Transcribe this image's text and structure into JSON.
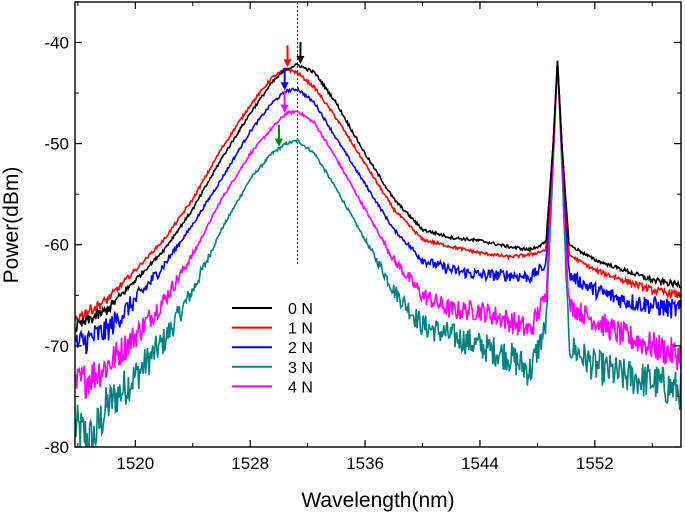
{
  "chart_data": {
    "type": "line",
    "title": "",
    "xlabel": "Wavelength(nm)",
    "ylabel": "Power(dBm)",
    "xlim": [
      1515.8,
      1558.0
    ],
    "ylim": [
      -80,
      -36
    ],
    "xticks": [
      1520,
      1528,
      1536,
      1544,
      1552
    ],
    "yticks": [
      -80,
      -70,
      -60,
      -50,
      -40
    ],
    "xtick_labels": [
      "1520",
      "1528",
      "1536",
      "1544",
      "1552"
    ],
    "ytick_labels": [
      "-80",
      "-70",
      "-60",
      "-50",
      "-40"
    ],
    "legend_position": "bottom-center",
    "reference_line_x": 1531.3,
    "series": [
      {
        "name": "0 N",
        "color": "#000000",
        "points": [
          [
            1515.8,
            -68.2
          ],
          [
            1518,
            -66.5
          ],
          [
            1520,
            -63.5
          ],
          [
            1522,
            -60.5
          ],
          [
            1524,
            -56.5
          ],
          [
            1526,
            -51.5
          ],
          [
            1528,
            -47.0
          ],
          [
            1529.5,
            -44.0
          ],
          [
            1530.5,
            -42.6
          ],
          [
            1531.3,
            -42.2
          ],
          [
            1532.5,
            -43.0
          ],
          [
            1534,
            -46.0
          ],
          [
            1536,
            -51.0
          ],
          [
            1538,
            -55.5
          ],
          [
            1540,
            -58.5
          ],
          [
            1542,
            -59.3
          ],
          [
            1544,
            -59.6
          ],
          [
            1546,
            -60.2
          ],
          [
            1547.5,
            -60.5
          ],
          [
            1548.6,
            -59.8
          ],
          [
            1549.1,
            -50.0
          ],
          [
            1549.4,
            -41.8
          ],
          [
            1549.7,
            -50.0
          ],
          [
            1550.2,
            -60.0
          ],
          [
            1552,
            -61.5
          ],
          [
            1554,
            -62.5
          ],
          [
            1556,
            -63.5
          ],
          [
            1558,
            -64.0
          ]
        ]
      },
      {
        "name": "1 N",
        "color": "#ff0000",
        "points": [
          [
            1515.8,
            -67.3
          ],
          [
            1518,
            -65.5
          ],
          [
            1520,
            -62.5
          ],
          [
            1522,
            -59.5
          ],
          [
            1524,
            -55.5
          ],
          [
            1526,
            -50.5
          ],
          [
            1528,
            -46.2
          ],
          [
            1529.5,
            -43.5
          ],
          [
            1530.5,
            -42.6
          ],
          [
            1531.3,
            -43.0
          ],
          [
            1532.5,
            -44.5
          ],
          [
            1534,
            -47.5
          ],
          [
            1536,
            -52.0
          ],
          [
            1538,
            -56.5
          ],
          [
            1540,
            -59.5
          ],
          [
            1542,
            -60.2
          ],
          [
            1544,
            -60.8
          ],
          [
            1546,
            -61.2
          ],
          [
            1547.5,
            -61.0
          ],
          [
            1548.6,
            -60.5
          ],
          [
            1549.1,
            -50.0
          ],
          [
            1549.4,
            -41.8
          ],
          [
            1549.7,
            -50.0
          ],
          [
            1550.2,
            -61.0
          ],
          [
            1552,
            -62.5
          ],
          [
            1554,
            -63.5
          ],
          [
            1556,
            -64.5
          ],
          [
            1558,
            -65.0
          ]
        ]
      },
      {
        "name": "2 N",
        "color": "#0000ff",
        "points": [
          [
            1515.8,
            -70.0
          ],
          [
            1518,
            -68.5
          ],
          [
            1520,
            -65.5
          ],
          [
            1522,
            -62.0
          ],
          [
            1524,
            -58.0
          ],
          [
            1526,
            -53.5
          ],
          [
            1528,
            -48.8
          ],
          [
            1529.5,
            -46.0
          ],
          [
            1530.5,
            -44.8
          ],
          [
            1531.3,
            -44.6
          ],
          [
            1532.5,
            -46.0
          ],
          [
            1534,
            -49.5
          ],
          [
            1536,
            -54.0
          ],
          [
            1538,
            -58.5
          ],
          [
            1540,
            -61.5
          ],
          [
            1542,
            -62.5
          ],
          [
            1544,
            -63.0
          ],
          [
            1546,
            -63.0
          ],
          [
            1547.5,
            -63.2
          ],
          [
            1548.6,
            -62.0
          ],
          [
            1549.1,
            -50.0
          ],
          [
            1549.4,
            -41.8
          ],
          [
            1549.7,
            -50.0
          ],
          [
            1550.2,
            -63.0
          ],
          [
            1552,
            -64.5
          ],
          [
            1554,
            -65.5
          ],
          [
            1556,
            -66.0
          ],
          [
            1558,
            -66.5
          ]
        ]
      },
      {
        "name": "3 N",
        "color": "#008080",
        "points": [
          [
            1515.8,
            -78.0
          ],
          [
            1517,
            -79.5
          ],
          [
            1518,
            -76.0
          ],
          [
            1520,
            -73.0
          ],
          [
            1522,
            -69.5
          ],
          [
            1524,
            -64.5
          ],
          [
            1526,
            -58.5
          ],
          [
            1528,
            -53.5
          ],
          [
            1529.5,
            -51.0
          ],
          [
            1530.5,
            -50.0
          ],
          [
            1531.3,
            -49.7
          ],
          [
            1532.5,
            -51.0
          ],
          [
            1534,
            -54.5
          ],
          [
            1536,
            -59.5
          ],
          [
            1538,
            -64.5
          ],
          [
            1540,
            -68.0
          ],
          [
            1542,
            -69.0
          ],
          [
            1544,
            -70.0
          ],
          [
            1546,
            -71.0
          ],
          [
            1547.5,
            -72.5
          ],
          [
            1548.6,
            -68.0
          ],
          [
            1549.1,
            -52.0
          ],
          [
            1549.4,
            -41.8
          ],
          [
            1549.7,
            -52.0
          ],
          [
            1550.2,
            -70.0
          ],
          [
            1552,
            -72.0
          ],
          [
            1554,
            -73.0
          ],
          [
            1556,
            -73.5
          ],
          [
            1558,
            -74.5
          ]
        ]
      },
      {
        "name": "4 N",
        "color": "#ff00ff",
        "points": [
          [
            1515.8,
            -74.0
          ],
          [
            1518,
            -72.0
          ],
          [
            1520,
            -69.0
          ],
          [
            1522,
            -65.5
          ],
          [
            1524,
            -61.0
          ],
          [
            1526,
            -55.5
          ],
          [
            1528,
            -51.0
          ],
          [
            1529.5,
            -48.5
          ],
          [
            1530.5,
            -47.0
          ],
          [
            1531.3,
            -46.8
          ],
          [
            1532.5,
            -48.0
          ],
          [
            1534,
            -51.5
          ],
          [
            1536,
            -56.5
          ],
          [
            1538,
            -61.5
          ],
          [
            1540,
            -65.0
          ],
          [
            1542,
            -66.5
          ],
          [
            1544,
            -66.5
          ],
          [
            1546,
            -67.5
          ],
          [
            1547.5,
            -68.5
          ],
          [
            1548.6,
            -65.0
          ],
          [
            1549.1,
            -51.0
          ],
          [
            1549.4,
            -41.8
          ],
          [
            1549.7,
            -51.0
          ],
          [
            1550.2,
            -66.0
          ],
          [
            1552,
            -67.5
          ],
          [
            1554,
            -69.0
          ],
          [
            1556,
            -70.0
          ],
          [
            1558,
            -71.0
          ]
        ]
      }
    ],
    "arrows": [
      {
        "series": "0 N",
        "x": 1531.5,
        "color": "#000000"
      },
      {
        "series": "1 N",
        "x": 1530.6,
        "color": "#ff0000"
      },
      {
        "series": "2 N",
        "x": 1530.4,
        "color": "#0000ff"
      },
      {
        "series": "3 N",
        "x": 1530.0,
        "color": "#008000"
      },
      {
        "series": "4 N",
        "x": 1530.4,
        "color": "#ff00ff"
      }
    ]
  }
}
